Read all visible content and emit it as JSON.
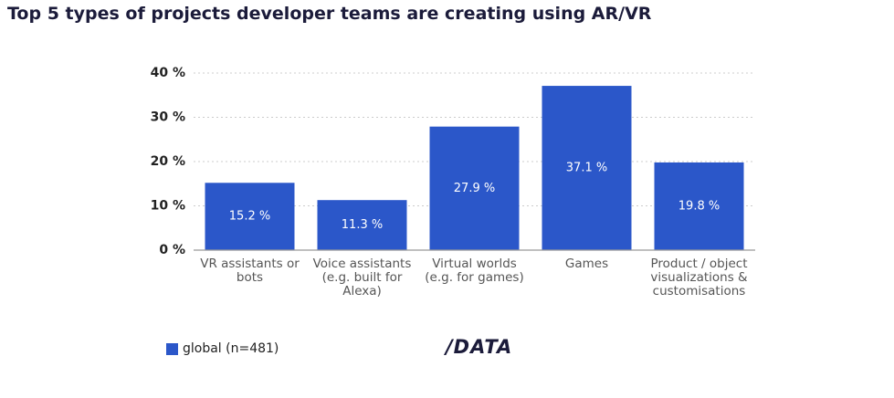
{
  "chart_data": {
    "type": "bar",
    "title": "Top 5 types of projects developer teams are creating using AR/VR",
    "categories": [
      "VR assistants or bots",
      "Voice assistants (e.g. built for Alexa)",
      "Virtual worlds (e.g. for games)",
      "Games",
      "Product / object visualizations & customisations"
    ],
    "series": [
      {
        "name": "global (n=481)",
        "color": "#2b57c9",
        "values": [
          15.2,
          11.3,
          27.9,
          37.1,
          19.8
        ],
        "value_labels": [
          "15.2 %",
          "11.3 %",
          "27.9 %",
          "37.1 %",
          "19.8 %"
        ]
      }
    ],
    "ylim": [
      0,
      40
    ],
    "yticks": [
      {
        "value": 0,
        "label": "0 %"
      },
      {
        "value": 10,
        "label": "10 %"
      },
      {
        "value": 20,
        "label": "20 %"
      },
      {
        "value": 30,
        "label": "30 %"
      },
      {
        "value": 40,
        "label": "40 %"
      }
    ],
    "grid": true,
    "logo": "/DATA"
  }
}
